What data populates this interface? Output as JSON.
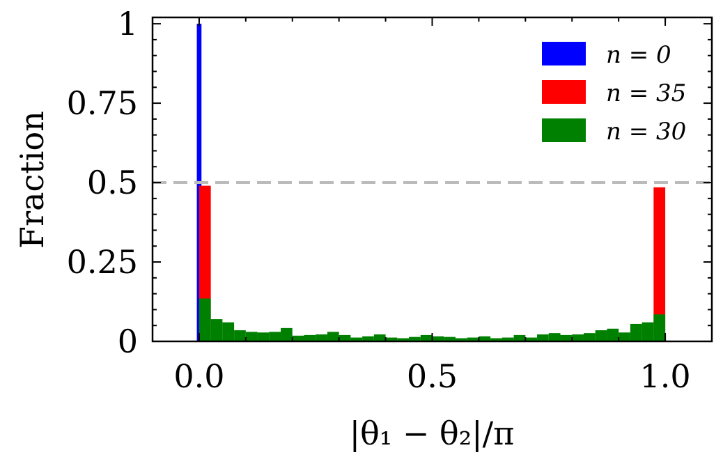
{
  "chart_data": {
    "type": "bar",
    "xlabel": "|θ₁ − θ₂|/π",
    "ylabel": "Fraction",
    "xlim": [
      -0.1,
      1.1
    ],
    "ylim": [
      0,
      1.02
    ],
    "x_ticks": [
      {
        "value": 0.0,
        "label": "0.0"
      },
      {
        "value": 0.5,
        "label": "0.5"
      },
      {
        "value": 1.0,
        "label": "1.0"
      }
    ],
    "y_ticks": [
      {
        "value": 0,
        "label": "0"
      },
      {
        "value": 0.25,
        "label": "0.25"
      },
      {
        "value": 0.5,
        "label": "0.5"
      },
      {
        "value": 0.75,
        "label": "0.75"
      },
      {
        "value": 1.0,
        "label": "1"
      }
    ],
    "reference_line": {
      "y": 0.5,
      "color": "#bbbbbb",
      "style": "dashed"
    },
    "grid": false,
    "legend_position": "top-right",
    "series": [
      {
        "name": "n = 0",
        "color": "#0000ff",
        "bins": [
          {
            "x0": -0.005,
            "x1": 0.005,
            "value": 1.0
          }
        ]
      },
      {
        "name": "n = 35",
        "color": "#ff0000",
        "bins": [
          {
            "x0": 0.0,
            "x1": 0.025,
            "value": 0.49
          },
          {
            "x0": 0.975,
            "x1": 1.0,
            "value": 0.485
          }
        ]
      },
      {
        "name": "n = 30",
        "color": "#008000",
        "bins": [
          {
            "x0": 0.0,
            "x1": 0.025,
            "value": 0.135
          },
          {
            "x0": 0.025,
            "x1": 0.05,
            "value": 0.07
          },
          {
            "x0": 0.05,
            "x1": 0.075,
            "value": 0.06
          },
          {
            "x0": 0.075,
            "x1": 0.1,
            "value": 0.035
          },
          {
            "x0": 0.1,
            "x1": 0.125,
            "value": 0.03
          },
          {
            "x0": 0.125,
            "x1": 0.15,
            "value": 0.028
          },
          {
            "x0": 0.15,
            "x1": 0.175,
            "value": 0.03
          },
          {
            "x0": 0.175,
            "x1": 0.2,
            "value": 0.042
          },
          {
            "x0": 0.2,
            "x1": 0.225,
            "value": 0.018
          },
          {
            "x0": 0.225,
            "x1": 0.25,
            "value": 0.02
          },
          {
            "x0": 0.25,
            "x1": 0.275,
            "value": 0.022
          },
          {
            "x0": 0.275,
            "x1": 0.3,
            "value": 0.03
          },
          {
            "x0": 0.3,
            "x1": 0.325,
            "value": 0.02
          },
          {
            "x0": 0.325,
            "x1": 0.35,
            "value": 0.012
          },
          {
            "x0": 0.35,
            "x1": 0.375,
            "value": 0.016
          },
          {
            "x0": 0.375,
            "x1": 0.4,
            "value": 0.022
          },
          {
            "x0": 0.4,
            "x1": 0.425,
            "value": 0.012
          },
          {
            "x0": 0.425,
            "x1": 0.45,
            "value": 0.01
          },
          {
            "x0": 0.45,
            "x1": 0.475,
            "value": 0.014
          },
          {
            "x0": 0.475,
            "x1": 0.5,
            "value": 0.02
          },
          {
            "x0": 0.5,
            "x1": 0.525,
            "value": 0.016
          },
          {
            "x0": 0.525,
            "x1": 0.55,
            "value": 0.014
          },
          {
            "x0": 0.55,
            "x1": 0.575,
            "value": 0.01
          },
          {
            "x0": 0.575,
            "x1": 0.6,
            "value": 0.012
          },
          {
            "x0": 0.6,
            "x1": 0.625,
            "value": 0.016
          },
          {
            "x0": 0.625,
            "x1": 0.65,
            "value": 0.01
          },
          {
            "x0": 0.65,
            "x1": 0.675,
            "value": 0.012
          },
          {
            "x0": 0.675,
            "x1": 0.7,
            "value": 0.02
          },
          {
            "x0": 0.7,
            "x1": 0.725,
            "value": 0.012
          },
          {
            "x0": 0.725,
            "x1": 0.75,
            "value": 0.022
          },
          {
            "x0": 0.75,
            "x1": 0.775,
            "value": 0.026
          },
          {
            "x0": 0.775,
            "x1": 0.8,
            "value": 0.02
          },
          {
            "x0": 0.8,
            "x1": 0.825,
            "value": 0.022
          },
          {
            "x0": 0.825,
            "x1": 0.85,
            "value": 0.026
          },
          {
            "x0": 0.85,
            "x1": 0.875,
            "value": 0.035
          },
          {
            "x0": 0.875,
            "x1": 0.9,
            "value": 0.04
          },
          {
            "x0": 0.9,
            "x1": 0.925,
            "value": 0.028
          },
          {
            "x0": 0.925,
            "x1": 0.95,
            "value": 0.055
          },
          {
            "x0": 0.95,
            "x1": 0.975,
            "value": 0.06
          },
          {
            "x0": 0.975,
            "x1": 1.0,
            "value": 0.085
          }
        ]
      }
    ]
  }
}
